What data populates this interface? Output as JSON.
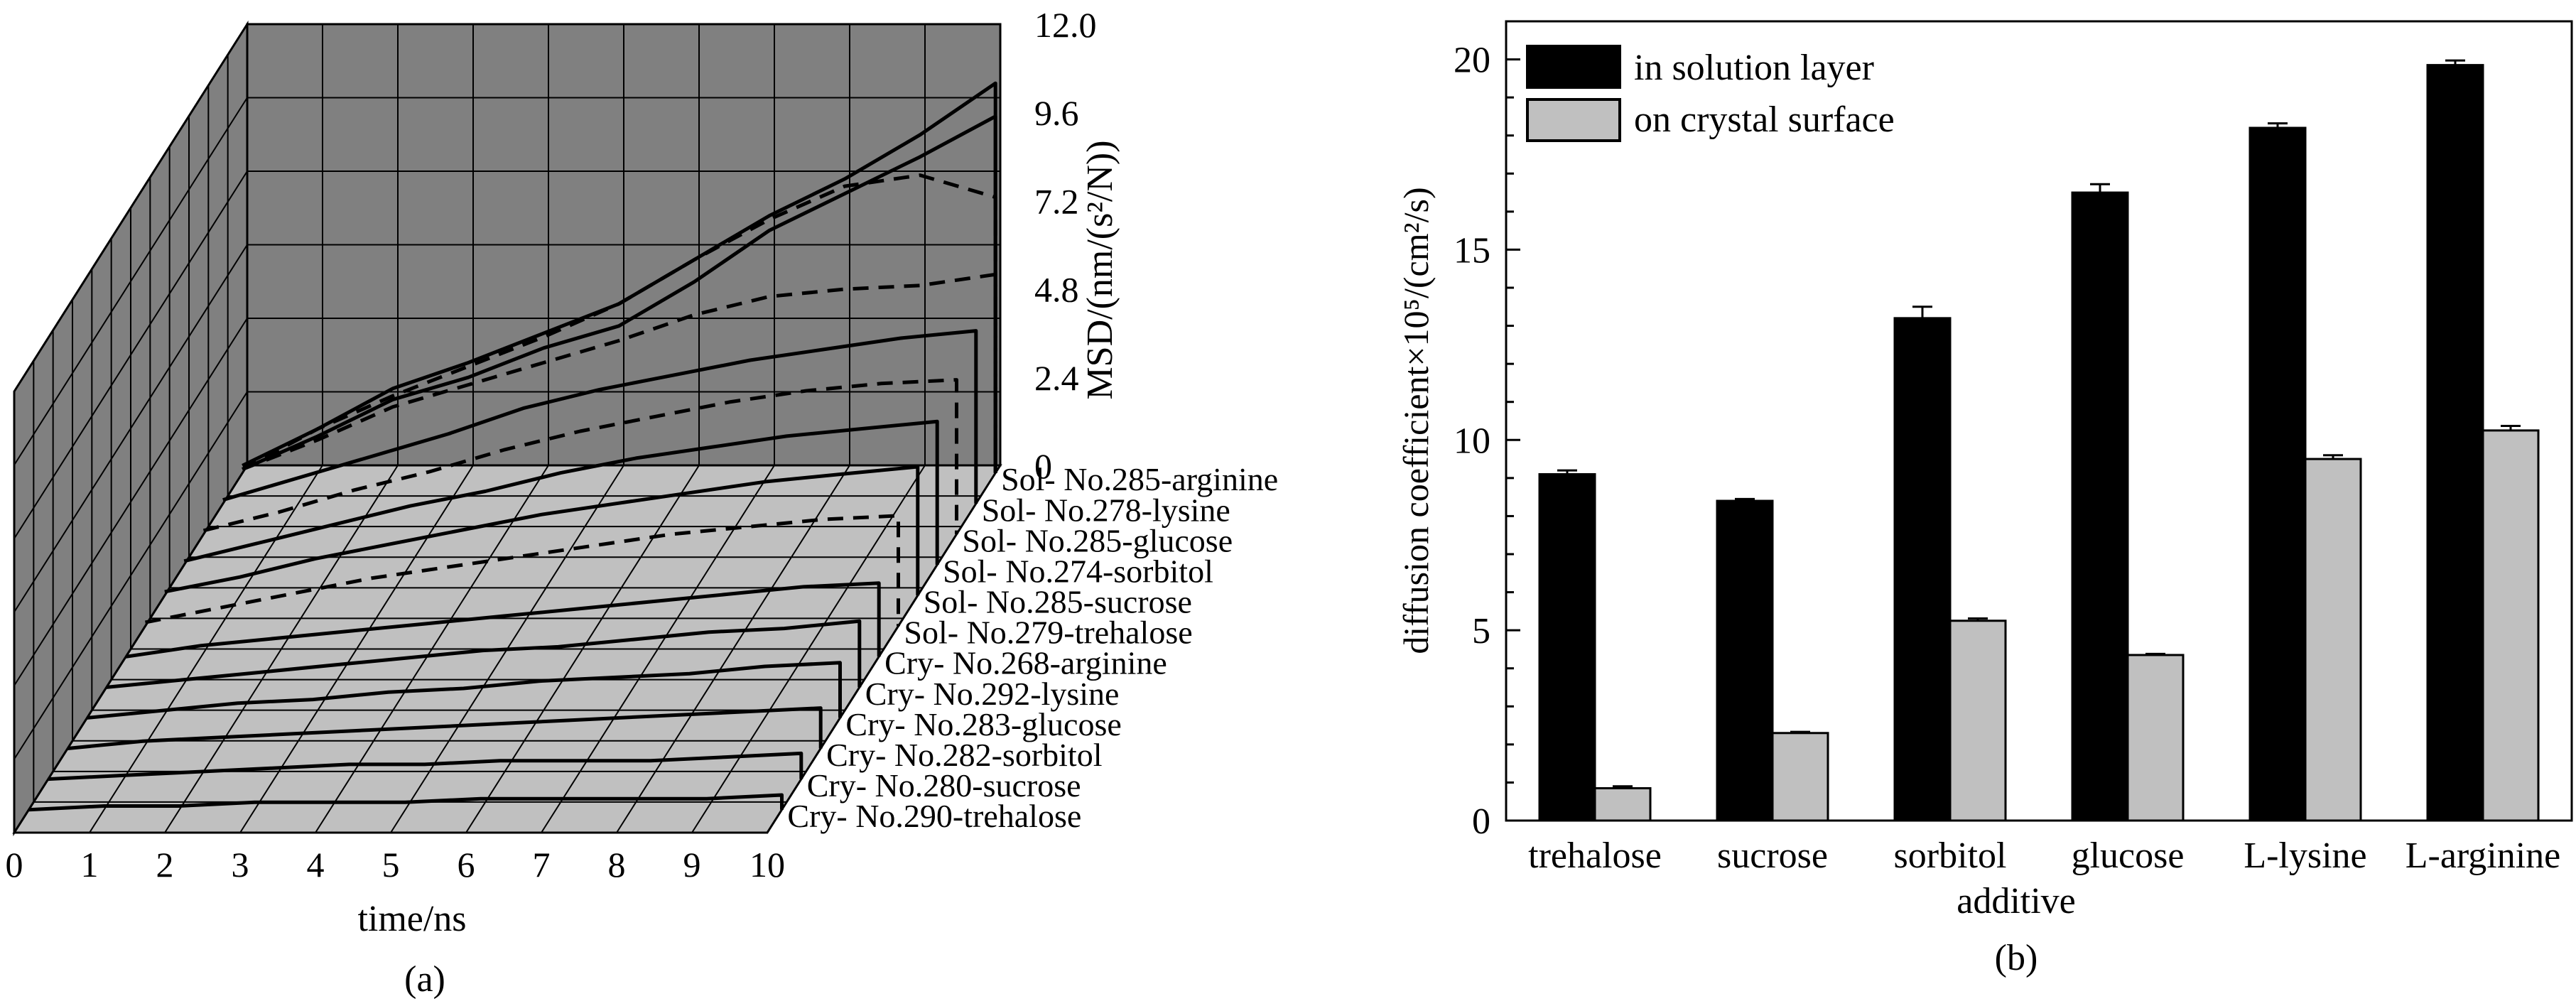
{
  "chart_data": [
    {
      "type": "line",
      "panel": "(a)",
      "view": "3d-waterfall",
      "xlabel": "time/ns",
      "zlabel": "MSD/(nm/(s²/N))",
      "x_ticks": [
        "0",
        "1",
        "2",
        "3",
        "4",
        "5",
        "6",
        "7",
        "8",
        "9",
        "10"
      ],
      "z_ticks": [
        "0",
        "2.4",
        "4.8",
        "7.2",
        "9.6",
        "12.0"
      ],
      "xlim": [
        0,
        10
      ],
      "zlim": [
        0,
        12
      ],
      "series_labels": [
        "Sol- No.285-arginine",
        "Sol- No.278-lysine",
        "Sol- No.285-glucose",
        "Sol- No.274-sorbitol",
        "Sol- No.285-sucrose",
        "Sol- No.279-trehalose",
        "Cry- No.268-arginine",
        "Cry- No.292-lysine",
        "Cry- No.283-glucose",
        "Cry- No.282-sorbitol",
        "Cry- No.280-sucrose",
        "Cry- No.290-trehalose"
      ],
      "series": [
        {
          "label_index": 0,
          "dash": "solid",
          "x": [
            0,
            1,
            2,
            3,
            4,
            5,
            6,
            7,
            8,
            9,
            10
          ],
          "values": [
            0.2,
            1.2,
            2.3,
            3.0,
            3.8,
            4.6,
            5.8,
            7.0,
            8.0,
            9.2,
            10.6
          ]
        },
        {
          "label_index": 0,
          "dash": "solid",
          "x": [
            0,
            1,
            2,
            3,
            4,
            5,
            6,
            7,
            8,
            9,
            10
          ],
          "values": [
            0.1,
            1.0,
            2.0,
            2.6,
            3.4,
            4.0,
            5.2,
            6.6,
            7.6,
            8.6,
            9.7
          ]
        },
        {
          "label_index": 0,
          "dash": "dash",
          "x": [
            0,
            1,
            2,
            3,
            4,
            5,
            6,
            7,
            8,
            9,
            10
          ],
          "values": [
            0.1,
            1.2,
            2.1,
            2.9,
            3.7,
            4.6,
            5.8,
            6.9,
            7.8,
            8.1,
            7.5
          ]
        },
        {
          "label_index": 0,
          "dash": "dash",
          "x": [
            0,
            1,
            2,
            3,
            4,
            5,
            6,
            7,
            8,
            9,
            10
          ],
          "values": [
            0.1,
            0.9,
            1.8,
            2.4,
            3.0,
            3.6,
            4.3,
            4.8,
            5.0,
            5.1,
            5.4
          ]
        },
        {
          "label_index": 1,
          "dash": "solid",
          "x": [
            0,
            1,
            2,
            3,
            4,
            5,
            6,
            7,
            8,
            9,
            10
          ],
          "values": [
            0.1,
            0.7,
            1.3,
            1.9,
            2.6,
            3.1,
            3.5,
            3.9,
            4.2,
            4.5,
            4.7
          ]
        },
        {
          "label_index": 2,
          "dash": "dash",
          "x": [
            0,
            1,
            2,
            3,
            4,
            5,
            6,
            7,
            8,
            9,
            10
          ],
          "values": [
            0.1,
            0.6,
            1.2,
            1.7,
            2.3,
            2.8,
            3.2,
            3.6,
            3.9,
            4.1,
            4.2
          ]
        },
        {
          "label_index": 3,
          "dash": "solid",
          "x": [
            0,
            1,
            2,
            3,
            4,
            5,
            6,
            7,
            8,
            9,
            10
          ],
          "values": [
            0.1,
            0.6,
            1.1,
            1.6,
            2.0,
            2.5,
            2.9,
            3.2,
            3.5,
            3.7,
            3.9
          ]
        },
        {
          "label_index": 4,
          "dash": "solid",
          "x": [
            0,
            1,
            2,
            3,
            4,
            5,
            6,
            7,
            8,
            9,
            10
          ],
          "values": [
            0.1,
            0.5,
            1.0,
            1.4,
            1.8,
            2.2,
            2.5,
            2.8,
            3.1,
            3.3,
            3.5
          ]
        },
        {
          "label_index": 5,
          "dash": "dash",
          "x": [
            0,
            1,
            2,
            3,
            4,
            5,
            6,
            7,
            8,
            9,
            10
          ],
          "values": [
            0.1,
            0.5,
            0.9,
            1.3,
            1.6,
            1.9,
            2.2,
            2.5,
            2.7,
            2.9,
            3.0
          ]
        },
        {
          "label_index": 6,
          "dash": "solid",
          "x": [
            0,
            1,
            2,
            3,
            4,
            5,
            6,
            7,
            8,
            9,
            10
          ],
          "values": [
            0.0,
            0.3,
            0.5,
            0.7,
            0.9,
            1.1,
            1.3,
            1.5,
            1.7,
            1.9,
            2.0
          ]
        },
        {
          "label_index": 7,
          "dash": "solid",
          "x": [
            0,
            1,
            2,
            3,
            4,
            5,
            6,
            7,
            8,
            9,
            10
          ],
          "values": [
            0.0,
            0.2,
            0.4,
            0.6,
            0.8,
            1.0,
            1.1,
            1.3,
            1.5,
            1.6,
            1.8
          ]
        },
        {
          "label_index": 8,
          "dash": "solid",
          "x": [
            0,
            1,
            2,
            3,
            4,
            5,
            6,
            7,
            8,
            9,
            10
          ],
          "values": [
            0.0,
            0.2,
            0.4,
            0.5,
            0.7,
            0.8,
            1.0,
            1.1,
            1.2,
            1.4,
            1.5
          ]
        },
        {
          "label_index": 9,
          "dash": "solid",
          "x": [
            0,
            1,
            2,
            3,
            4,
            5,
            6,
            7,
            8,
            9,
            10
          ],
          "values": [
            0.0,
            0.2,
            0.3,
            0.4,
            0.5,
            0.6,
            0.7,
            0.8,
            0.9,
            1.0,
            1.1
          ]
        },
        {
          "label_index": 10,
          "dash": "solid",
          "x": [
            0,
            1,
            2,
            3,
            4,
            5,
            6,
            7,
            8,
            9,
            10
          ],
          "values": [
            0.0,
            0.1,
            0.2,
            0.3,
            0.4,
            0.4,
            0.5,
            0.5,
            0.5,
            0.6,
            0.7
          ]
        },
        {
          "label_index": 11,
          "dash": "solid",
          "x": [
            0,
            1,
            2,
            3,
            4,
            5,
            6,
            7,
            8,
            9,
            10
          ],
          "values": [
            0.0,
            0.1,
            0.1,
            0.2,
            0.2,
            0.2,
            0.3,
            0.3,
            0.3,
            0.3,
            0.4
          ]
        }
      ],
      "colors": {
        "back_wall": "#808080",
        "floor": "#c0c0c0",
        "grid": "#000000",
        "line": "#000000"
      }
    },
    {
      "type": "bar",
      "panel": "(b)",
      "xlabel": "additive",
      "ylabel": "diffusion coefficient×10⁵/(cm²/s)",
      "ylim": [
        0,
        21
      ],
      "y_ticks": [
        "0",
        "5",
        "10",
        "15",
        "20"
      ],
      "categories": [
        "trehalose",
        "sucrose",
        "sorbitol",
        "glucose",
        "L-lysine",
        "L-arginine"
      ],
      "legend_position": "top-left",
      "series": [
        {
          "name": "in solution layer",
          "color": "#000000",
          "values": [
            9.1,
            8.4,
            13.2,
            16.5,
            18.2,
            19.85
          ],
          "errors": [
            0.1,
            0.05,
            0.3,
            0.22,
            0.12,
            0.12
          ]
        },
        {
          "name": "on crystal surface",
          "color": "#c0c0c0",
          "values": [
            0.85,
            2.3,
            5.25,
            4.35,
            9.5,
            10.25
          ],
          "errors": [
            0.05,
            0.03,
            0.06,
            0.03,
            0.1,
            0.12
          ]
        }
      ]
    }
  ]
}
